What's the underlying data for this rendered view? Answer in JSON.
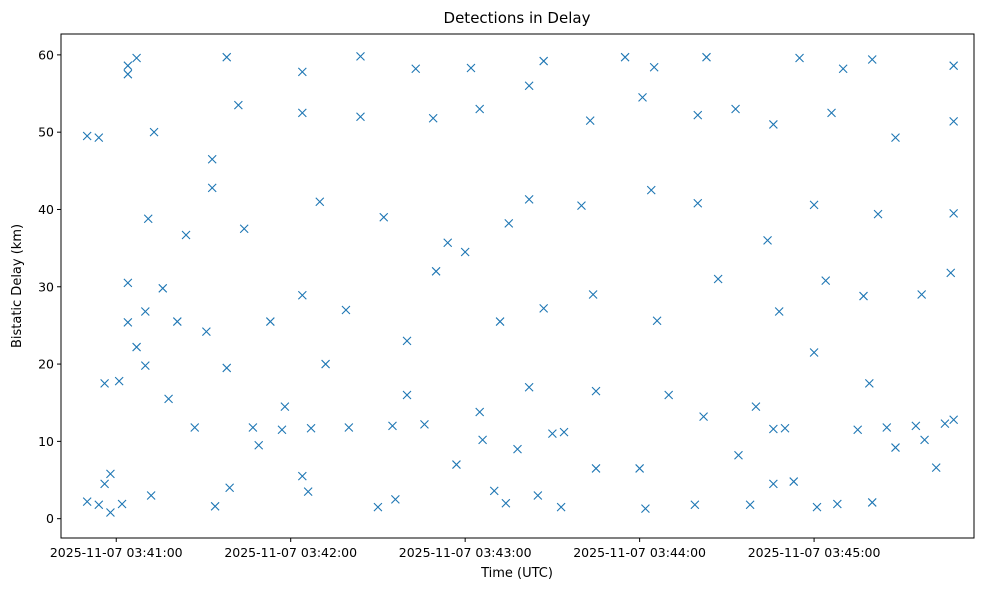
{
  "chart_data": {
    "type": "scatter",
    "title": "Detections in Delay",
    "xlabel": "Time (UTC)",
    "ylabel": "Bistatic Delay (km)",
    "x_tick_labels": [
      "2025-11-07 03:41:00",
      "2025-11-07 03:42:00",
      "2025-11-07 03:43:00",
      "2025-11-07 03:44:00",
      "2025-11-07 03:45:00"
    ],
    "x_ticks": [
      "2025-11-07T03:41:00Z",
      "2025-11-07T03:42:00Z",
      "2025-11-07T03:43:00Z",
      "2025-11-07T03:44:00Z",
      "2025-11-07T03:45:00Z"
    ],
    "xlim": [
      "2025-11-07T03:40:41Z",
      "2025-11-07T03:45:55Z"
    ],
    "y_ticks": [
      0,
      10,
      20,
      30,
      40,
      50,
      60
    ],
    "ylim": [
      -2.5,
      62.7
    ],
    "grid": false,
    "marker": "x",
    "color": "#1f77b4",
    "series": [
      {
        "points": [
          [
            "2025-11-07T03:40:50Z",
            2.2
          ],
          [
            "2025-11-07T03:40:54Z",
            1.8
          ],
          [
            "2025-11-07T03:41:02Z",
            1.9
          ],
          [
            "2025-11-07T03:41:12Z",
            3.0
          ],
          [
            "2025-11-07T03:40:58Z",
            0.8
          ],
          [
            "2025-11-07T03:40:56Z",
            4.5
          ],
          [
            "2025-11-07T03:40:58Z",
            5.8
          ],
          [
            "2025-11-07T03:41:34Z",
            1.6
          ],
          [
            "2025-11-07T03:41:39Z",
            4.0
          ],
          [
            "2025-11-07T03:42:06Z",
            3.5
          ],
          [
            "2025-11-07T03:42:30Z",
            1.5
          ],
          [
            "2025-11-07T03:42:36Z",
            2.5
          ],
          [
            "2025-11-07T03:42:57Z",
            7.0
          ],
          [
            "2025-11-07T03:43:10Z",
            3.6
          ],
          [
            "2025-11-07T03:43:14Z",
            2.0
          ],
          [
            "2025-11-07T03:43:25Z",
            3.0
          ],
          [
            "2025-11-07T03:43:33Z",
            1.5
          ],
          [
            "2025-11-07T03:43:45Z",
            6.5
          ],
          [
            "2025-11-07T03:44:02Z",
            1.3
          ],
          [
            "2025-11-07T03:44:19Z",
            1.8
          ],
          [
            "2025-11-07T03:44:38Z",
            1.8
          ],
          [
            "2025-11-07T03:45:01Z",
            1.5
          ],
          [
            "2025-11-07T03:45:08Z",
            1.9
          ],
          [
            "2025-11-07T03:45:20Z",
            2.1
          ],
          [
            "2025-11-07T03:44:53Z",
            4.8
          ],
          [
            "2025-11-07T03:44:46Z",
            4.5
          ],
          [
            "2025-11-07T03:41:47Z",
            11.8
          ],
          [
            "2025-11-07T03:41:57Z",
            11.5
          ],
          [
            "2025-11-07T03:42:07Z",
            11.7
          ],
          [
            "2025-11-07T03:42:20Z",
            11.8
          ],
          [
            "2025-11-07T03:42:35Z",
            12.0
          ],
          [
            "2025-11-07T03:42:46Z",
            12.2
          ],
          [
            "2025-11-07T03:44:46Z",
            11.6
          ],
          [
            "2025-11-07T03:44:50Z",
            11.7
          ],
          [
            "2025-11-07T03:45:15Z",
            11.5
          ],
          [
            "2025-11-07T03:45:25Z",
            11.8
          ],
          [
            "2025-11-07T03:45:35Z",
            12.0
          ],
          [
            "2025-11-07T03:45:45Z",
            12.3
          ],
          [
            "2025-11-07T03:40:56Z",
            17.5
          ],
          [
            "2025-11-07T03:41:01Z",
            17.8
          ],
          [
            "2025-11-07T03:41:10Z",
            19.8
          ],
          [
            "2025-11-07T03:41:18Z",
            15.5
          ],
          [
            "2025-11-07T03:41:38Z",
            19.5
          ],
          [
            "2025-11-07T03:41:58Z",
            14.5
          ],
          [
            "2025-11-07T03:42:12Z",
            20.0
          ],
          [
            "2025-11-07T03:42:40Z",
            23.0
          ],
          [
            "2025-11-07T03:43:05Z",
            13.8
          ],
          [
            "2025-11-07T03:43:18Z",
            9.0
          ],
          [
            "2025-11-07T03:43:30Z",
            11.0
          ],
          [
            "2025-11-07T03:43:45Z",
            16.5
          ],
          [
            "2025-11-07T03:44:10Z",
            16.0
          ],
          [
            "2025-11-07T03:44:40Z",
            14.5
          ],
          [
            "2025-11-07T03:45:00Z",
            21.5
          ],
          [
            "2025-11-07T03:45:19Z",
            17.5
          ],
          [
            "2025-11-07T03:45:38Z",
            10.2
          ],
          [
            "2025-11-07T03:45:48Z",
            12.8
          ],
          [
            "2025-11-07T03:43:22Z",
            17.0
          ],
          [
            "2025-11-07T03:44:22Z",
            13.2
          ],
          [
            "2025-11-07T03:41:04Z",
            25.4
          ],
          [
            "2025-11-07T03:41:04Z",
            30.5
          ],
          [
            "2025-11-07T03:41:07Z",
            22.2
          ],
          [
            "2025-11-07T03:41:10Z",
            26.8
          ],
          [
            "2025-11-07T03:41:16Z",
            29.8
          ],
          [
            "2025-11-07T03:41:21Z",
            25.5
          ],
          [
            "2025-11-07T03:41:31Z",
            24.2
          ],
          [
            "2025-11-07T03:41:53Z",
            25.5
          ],
          [
            "2025-11-07T03:42:19Z",
            27.0
          ],
          [
            "2025-11-07T03:42:50Z",
            32.0
          ],
          [
            "2025-11-07T03:43:12Z",
            25.5
          ],
          [
            "2025-11-07T03:43:27Z",
            27.2
          ],
          [
            "2025-11-07T03:43:44Z",
            29.0
          ],
          [
            "2025-11-07T03:44:06Z",
            25.6
          ],
          [
            "2025-11-07T03:44:27Z",
            31.0
          ],
          [
            "2025-11-07T03:44:48Z",
            26.8
          ],
          [
            "2025-11-07T03:45:04Z",
            30.8
          ],
          [
            "2025-11-07T03:45:17Z",
            28.8
          ],
          [
            "2025-11-07T03:45:37Z",
            29.0
          ],
          [
            "2025-11-07T03:45:47Z",
            31.8
          ],
          [
            "2025-11-07T03:43:00Z",
            34.5
          ],
          [
            "2025-11-07T03:42:04Z",
            28.9
          ],
          [
            "2025-11-07T03:41:11Z",
            38.8
          ],
          [
            "2025-11-07T03:41:24Z",
            36.7
          ],
          [
            "2025-11-07T03:41:33Z",
            42.8
          ],
          [
            "2025-11-07T03:41:44Z",
            37.5
          ],
          [
            "2025-11-07T03:42:10Z",
            41.0
          ],
          [
            "2025-11-07T03:42:32Z",
            39.0
          ],
          [
            "2025-11-07T03:42:54Z",
            35.7
          ],
          [
            "2025-11-07T03:43:15Z",
            38.2
          ],
          [
            "2025-11-07T03:43:40Z",
            40.5
          ],
          [
            "2025-11-07T03:44:04Z",
            42.5
          ],
          [
            "2025-11-07T03:44:20Z",
            40.8
          ],
          [
            "2025-11-07T03:44:44Z",
            36.0
          ],
          [
            "2025-11-07T03:45:00Z",
            40.6
          ],
          [
            "2025-11-07T03:45:22Z",
            39.4
          ],
          [
            "2025-11-07T03:45:48Z",
            39.5
          ],
          [
            "2025-11-07T03:43:22Z",
            41.3
          ],
          [
            "2025-11-07T03:40:50Z",
            49.5
          ],
          [
            "2025-11-07T03:40:54Z",
            49.3
          ],
          [
            "2025-11-07T03:41:13Z",
            50.0
          ],
          [
            "2025-11-07T03:41:33Z",
            46.5
          ],
          [
            "2025-11-07T03:41:42Z",
            53.5
          ],
          [
            "2025-11-07T03:42:04Z",
            52.5
          ],
          [
            "2025-11-07T03:42:24Z",
            52.0
          ],
          [
            "2025-11-07T03:42:49Z",
            51.8
          ],
          [
            "2025-11-07T03:43:05Z",
            53.0
          ],
          [
            "2025-11-07T03:43:22Z",
            56.0
          ],
          [
            "2025-11-07T03:43:43Z",
            51.5
          ],
          [
            "2025-11-07T03:44:01Z",
            54.5
          ],
          [
            "2025-11-07T03:44:20Z",
            52.2
          ],
          [
            "2025-11-07T03:44:46Z",
            51.0
          ],
          [
            "2025-11-07T03:45:06Z",
            52.5
          ],
          [
            "2025-11-07T03:45:28Z",
            49.3
          ],
          [
            "2025-11-07T03:45:48Z",
            51.4
          ],
          [
            "2025-11-07T03:44:33Z",
            53.0
          ],
          [
            "2025-11-07T03:41:04Z",
            57.5
          ],
          [
            "2025-11-07T03:41:04Z",
            58.6
          ],
          [
            "2025-11-07T03:41:07Z",
            59.6
          ],
          [
            "2025-11-07T03:41:38Z",
            59.7
          ],
          [
            "2025-11-07T03:42:04Z",
            57.8
          ],
          [
            "2025-11-07T03:42:24Z",
            59.8
          ],
          [
            "2025-11-07T03:42:43Z",
            58.2
          ],
          [
            "2025-11-07T03:43:02Z",
            58.3
          ],
          [
            "2025-11-07T03:43:27Z",
            59.2
          ],
          [
            "2025-11-07T03:43:55Z",
            59.7
          ],
          [
            "2025-11-07T03:44:23Z",
            59.7
          ],
          [
            "2025-11-07T03:44:55Z",
            59.6
          ],
          [
            "2025-11-07T03:45:20Z",
            59.4
          ],
          [
            "2025-11-07T03:45:48Z",
            58.6
          ],
          [
            "2025-11-07T03:45:10Z",
            58.2
          ],
          [
            "2025-11-07T03:44:05Z",
            58.4
          ],
          [
            "2025-11-07T03:41:27Z",
            11.8
          ],
          [
            "2025-11-07T03:41:49Z",
            9.5
          ],
          [
            "2025-11-07T03:42:04Z",
            5.5
          ],
          [
            "2025-11-07T03:42:40Z",
            16.0
          ],
          [
            "2025-11-07T03:43:06Z",
            10.2
          ],
          [
            "2025-11-07T03:43:34Z",
            11.2
          ],
          [
            "2025-11-07T03:44:00Z",
            6.5
          ],
          [
            "2025-11-07T03:44:34Z",
            8.2
          ],
          [
            "2025-11-07T03:45:28Z",
            9.2
          ],
          [
            "2025-11-07T03:45:42Z",
            6.6
          ]
        ]
      }
    ]
  }
}
